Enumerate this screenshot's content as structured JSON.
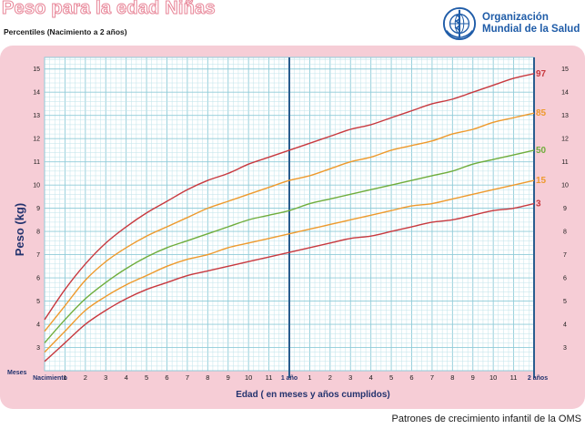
{
  "header": {
    "title": "Peso para la edad Niñas",
    "subtitle": "Percentiles (Nacimiento a 2 años)"
  },
  "logo": {
    "line1": "Organización",
    "line2": "Mundial de la Salud",
    "icon": "who-emblem-icon",
    "color": "#1f5ca8"
  },
  "footer": {
    "text": "Patrones de crecimiento infantil de la OMS"
  },
  "chart_data": {
    "type": "line",
    "xlabel": "Edad ( en meses y años cumplidos)",
    "ylabel": "Peso (kg)",
    "x_unit_label": "Meses",
    "xlim": [
      0,
      24
    ],
    "ylim": [
      2,
      15.5
    ],
    "y_ticks": [
      3,
      4,
      5,
      6,
      7,
      8,
      9,
      10,
      11,
      12,
      13,
      14,
      15
    ],
    "x_tick_labels": [
      {
        "x": 0,
        "label": "Nacimiento",
        "major": true
      },
      {
        "x": 1,
        "label": "1"
      },
      {
        "x": 2,
        "label": "2"
      },
      {
        "x": 3,
        "label": "3"
      },
      {
        "x": 4,
        "label": "4"
      },
      {
        "x": 5,
        "label": "5"
      },
      {
        "x": 6,
        "label": "6"
      },
      {
        "x": 7,
        "label": "7"
      },
      {
        "x": 8,
        "label": "8"
      },
      {
        "x": 9,
        "label": "9"
      },
      {
        "x": 10,
        "label": "10"
      },
      {
        "x": 11,
        "label": "11"
      },
      {
        "x": 12,
        "label": "1 año",
        "major": true
      },
      {
        "x": 13,
        "label": "1"
      },
      {
        "x": 14,
        "label": "2"
      },
      {
        "x": 15,
        "label": "3"
      },
      {
        "x": 16,
        "label": "4"
      },
      {
        "x": 17,
        "label": "5"
      },
      {
        "x": 18,
        "label": "6"
      },
      {
        "x": 19,
        "label": "7"
      },
      {
        "x": 20,
        "label": "8"
      },
      {
        "x": 21,
        "label": "9"
      },
      {
        "x": 22,
        "label": "10"
      },
      {
        "x": 23,
        "label": "11"
      },
      {
        "x": 24,
        "label": "2 años",
        "major": true
      }
    ],
    "x_minor_step": 0.25,
    "y_minor_step": 0.2,
    "grid": true,
    "colors": {
      "panel": "#f6cdd6",
      "plot_bg": "#ffffff",
      "grid_minor": "#bfe3ea",
      "grid_major": "#8fcbd8",
      "year_line": "#2a5d8f",
      "axis_text": "#1a1a1a",
      "ylabel": "#23336e"
    },
    "x": [
      0,
      1,
      2,
      3,
      4,
      5,
      6,
      7,
      8,
      9,
      10,
      11,
      12,
      13,
      14,
      15,
      16,
      17,
      18,
      19,
      20,
      21,
      22,
      23,
      24
    ],
    "series": [
      {
        "name": "97",
        "color": "#c8393f",
        "values": [
          4.2,
          5.5,
          6.6,
          7.5,
          8.2,
          8.8,
          9.3,
          9.8,
          10.2,
          10.5,
          10.9,
          11.2,
          11.5,
          11.8,
          12.1,
          12.4,
          12.6,
          12.9,
          13.2,
          13.5,
          13.7,
          14.0,
          14.3,
          14.6,
          14.8
        ]
      },
      {
        "name": "85",
        "color": "#ee9a2d",
        "values": [
          3.7,
          4.8,
          5.9,
          6.7,
          7.3,
          7.8,
          8.2,
          8.6,
          9.0,
          9.3,
          9.6,
          9.9,
          10.2,
          10.4,
          10.7,
          11.0,
          11.2,
          11.5,
          11.7,
          11.9,
          12.2,
          12.4,
          12.7,
          12.9,
          13.1
        ]
      },
      {
        "name": "50",
        "color": "#6fad3c",
        "values": [
          3.2,
          4.2,
          5.1,
          5.8,
          6.4,
          6.9,
          7.3,
          7.6,
          7.9,
          8.2,
          8.5,
          8.7,
          8.9,
          9.2,
          9.4,
          9.6,
          9.8,
          10.0,
          10.2,
          10.4,
          10.6,
          10.9,
          11.1,
          11.3,
          11.5
        ]
      },
      {
        "name": "15",
        "color": "#ee9a2d",
        "values": [
          2.8,
          3.7,
          4.6,
          5.2,
          5.7,
          6.1,
          6.5,
          6.8,
          7.0,
          7.3,
          7.5,
          7.7,
          7.9,
          8.1,
          8.3,
          8.5,
          8.7,
          8.9,
          9.1,
          9.2,
          9.4,
          9.6,
          9.8,
          10.0,
          10.2
        ]
      },
      {
        "name": "3",
        "color": "#c8393f",
        "values": [
          2.4,
          3.2,
          4.0,
          4.6,
          5.1,
          5.5,
          5.8,
          6.1,
          6.3,
          6.5,
          6.7,
          6.9,
          7.1,
          7.3,
          7.5,
          7.7,
          7.8,
          8.0,
          8.2,
          8.4,
          8.5,
          8.7,
          8.9,
          9.0,
          9.2
        ]
      }
    ]
  }
}
